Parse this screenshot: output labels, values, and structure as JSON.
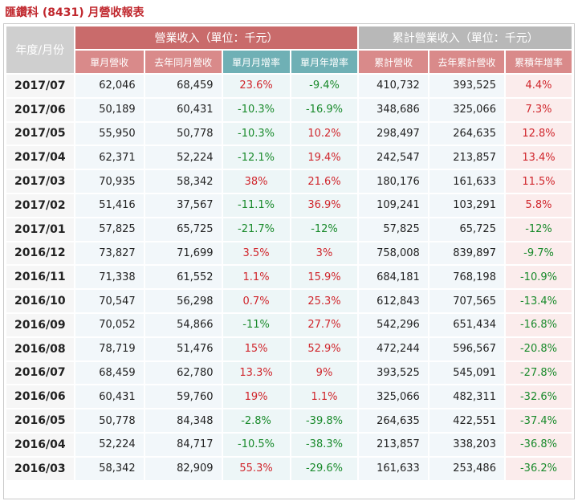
{
  "title": "匯鑽科 (8431) 月營收報表",
  "header": {
    "period": "年度/月份",
    "group_monthly": "營業收入（單位：千元）",
    "group_cumulative": "累計營業收入（單位：千元）",
    "columns": [
      "單月營收",
      "去年同月營收",
      "單月月增率",
      "單月年增率",
      "累計營收",
      "去年累計營收",
      "累積年增率"
    ]
  },
  "colors": {
    "positive": "#d0262c",
    "negative": "#198a2b",
    "header_red": "#c96b6b",
    "header_grey": "#b8b8b8",
    "header_teal": "#6fb0b5"
  },
  "rows": [
    {
      "period": "2017/07",
      "revenue": "62,046",
      "last_year": "68,459",
      "mom": "23.6%",
      "yoy": "-9.4%",
      "cum": "410,732",
      "cum_last": "393,525",
      "cum_yoy": "4.4%"
    },
    {
      "period": "2017/06",
      "revenue": "50,189",
      "last_year": "60,431",
      "mom": "-10.3%",
      "yoy": "-16.9%",
      "cum": "348,686",
      "cum_last": "325,066",
      "cum_yoy": "7.3%"
    },
    {
      "period": "2017/05",
      "revenue": "55,950",
      "last_year": "50,778",
      "mom": "-10.3%",
      "yoy": "10.2%",
      "cum": "298,497",
      "cum_last": "264,635",
      "cum_yoy": "12.8%"
    },
    {
      "period": "2017/04",
      "revenue": "62,371",
      "last_year": "52,224",
      "mom": "-12.1%",
      "yoy": "19.4%",
      "cum": "242,547",
      "cum_last": "213,857",
      "cum_yoy": "13.4%"
    },
    {
      "period": "2017/03",
      "revenue": "70,935",
      "last_year": "58,342",
      "mom": "38%",
      "yoy": "21.6%",
      "cum": "180,176",
      "cum_last": "161,633",
      "cum_yoy": "11.5%"
    },
    {
      "period": "2017/02",
      "revenue": "51,416",
      "last_year": "37,567",
      "mom": "-11.1%",
      "yoy": "36.9%",
      "cum": "109,241",
      "cum_last": "103,291",
      "cum_yoy": "5.8%"
    },
    {
      "period": "2017/01",
      "revenue": "57,825",
      "last_year": "65,725",
      "mom": "-21.7%",
      "yoy": "-12%",
      "cum": "57,825",
      "cum_last": "65,725",
      "cum_yoy": "-12%"
    },
    {
      "period": "2016/12",
      "revenue": "73,827",
      "last_year": "71,699",
      "mom": "3.5%",
      "yoy": "3%",
      "cum": "758,008",
      "cum_last": "839,897",
      "cum_yoy": "-9.7%"
    },
    {
      "period": "2016/11",
      "revenue": "71,338",
      "last_year": "61,552",
      "mom": "1.1%",
      "yoy": "15.9%",
      "cum": "684,181",
      "cum_last": "768,198",
      "cum_yoy": "-10.9%"
    },
    {
      "period": "2016/10",
      "revenue": "70,547",
      "last_year": "56,298",
      "mom": "0.7%",
      "yoy": "25.3%",
      "cum": "612,843",
      "cum_last": "707,565",
      "cum_yoy": "-13.4%"
    },
    {
      "period": "2016/09",
      "revenue": "70,052",
      "last_year": "54,866",
      "mom": "-11%",
      "yoy": "27.7%",
      "cum": "542,296",
      "cum_last": "651,434",
      "cum_yoy": "-16.8%"
    },
    {
      "period": "2016/08",
      "revenue": "78,719",
      "last_year": "51,476",
      "mom": "15%",
      "yoy": "52.9%",
      "cum": "472,244",
      "cum_last": "596,567",
      "cum_yoy": "-20.8%"
    },
    {
      "period": "2016/07",
      "revenue": "68,459",
      "last_year": "62,780",
      "mom": "13.3%",
      "yoy": "9%",
      "cum": "393,525",
      "cum_last": "545,091",
      "cum_yoy": "-27.8%"
    },
    {
      "period": "2016/06",
      "revenue": "60,431",
      "last_year": "59,760",
      "mom": "19%",
      "yoy": "1.1%",
      "cum": "325,066",
      "cum_last": "482,311",
      "cum_yoy": "-32.6%"
    },
    {
      "period": "2016/05",
      "revenue": "50,778",
      "last_year": "84,348",
      "mom": "-2.8%",
      "yoy": "-39.8%",
      "cum": "264,635",
      "cum_last": "422,551",
      "cum_yoy": "-37.4%"
    },
    {
      "period": "2016/04",
      "revenue": "52,224",
      "last_year": "84,717",
      "mom": "-10.5%",
      "yoy": "-38.3%",
      "cum": "213,857",
      "cum_last": "338,203",
      "cum_yoy": "-36.8%"
    },
    {
      "period": "2016/03",
      "revenue": "58,342",
      "last_year": "82,909",
      "mom": "55.3%",
      "yoy": "-29.6%",
      "cum": "161,633",
      "cum_last": "253,486",
      "cum_yoy": "-36.2%"
    }
  ]
}
